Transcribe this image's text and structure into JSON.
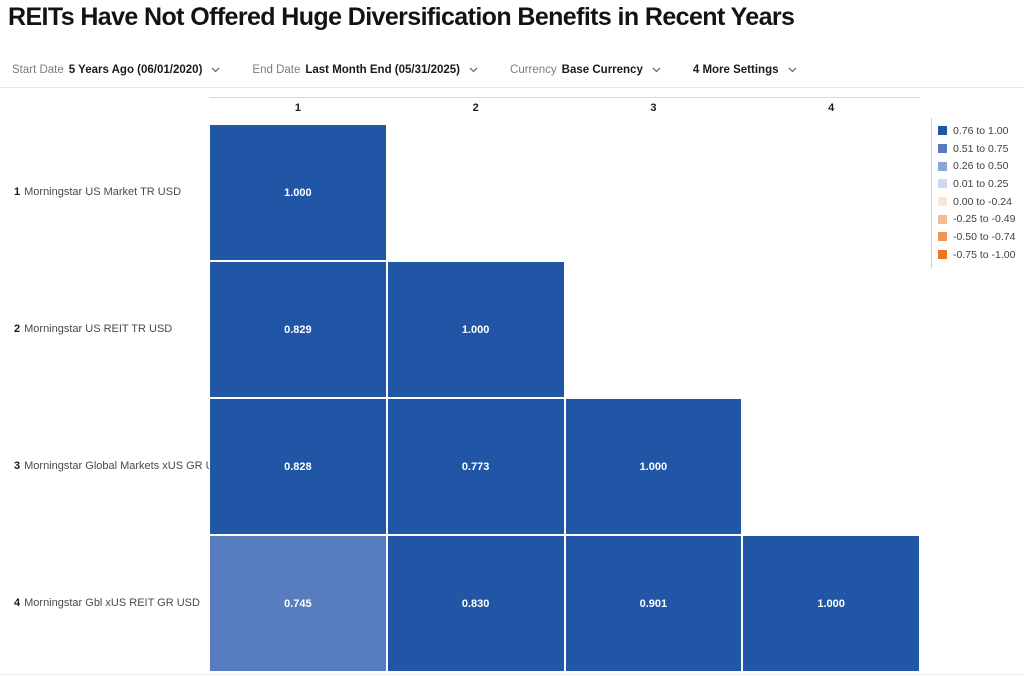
{
  "title": "REITs Have Not Offered Huge Diversification Benefits in Recent Years",
  "toolbar": {
    "items": [
      {
        "name": "start-date",
        "label": "Start Date",
        "value": "5 Years Ago (06/01/2020)"
      },
      {
        "name": "end-date",
        "label": "End Date",
        "value": "Last Month End (05/31/2025)"
      },
      {
        "name": "currency",
        "label": "Currency",
        "value": "Base Currency"
      },
      {
        "name": "more-settings",
        "label": "",
        "value": "4 More Settings"
      }
    ]
  },
  "chart_data": {
    "type": "heatmap",
    "title": "REITs Have Not Offered Huge Diversification Benefits in Recent Years",
    "rows": [
      {
        "num": "1",
        "label": "Morningstar US Market TR USD"
      },
      {
        "num": "2",
        "label": "Morningstar US REIT TR USD"
      },
      {
        "num": "3",
        "label": "Morningstar Global Markets xUS GR USD"
      },
      {
        "num": "4",
        "label": "Morningstar Gbl xUS REIT GR USD"
      }
    ],
    "columns": [
      "1",
      "2",
      "3",
      "4"
    ],
    "values": [
      [
        1.0
      ],
      [
        0.829,
        1.0
      ],
      [
        0.828,
        0.773,
        1.0
      ],
      [
        0.745,
        0.83,
        0.901,
        1.0
      ]
    ],
    "value_decimals": 3,
    "cell_text_color": "#ffffff",
    "legend_position": "right",
    "legend": [
      {
        "label": "0.76 to 1.00",
        "min": 0.76,
        "color": "#2156a7"
      },
      {
        "label": "0.51 to 0.75",
        "min": 0.51,
        "color": "#577dbf"
      },
      {
        "label": "0.26 to 0.50",
        "min": 0.26,
        "color": "#8ba6d4"
      },
      {
        "label": "0.01 to 0.25",
        "min": 0.01,
        "color": "#cdd8ea"
      },
      {
        "label": "0.00 to -0.24",
        "min": -0.24,
        "color": "#fbe5d6"
      },
      {
        "label": "-0.25 to -0.49",
        "min": -0.49,
        "color": "#f7bb92"
      },
      {
        "label": "-0.50 to -0.74",
        "min": -0.74,
        "color": "#f29356"
      },
      {
        "label": "-0.75 to -1.00",
        "min": -1.0,
        "color": "#ed7623"
      }
    ]
  }
}
